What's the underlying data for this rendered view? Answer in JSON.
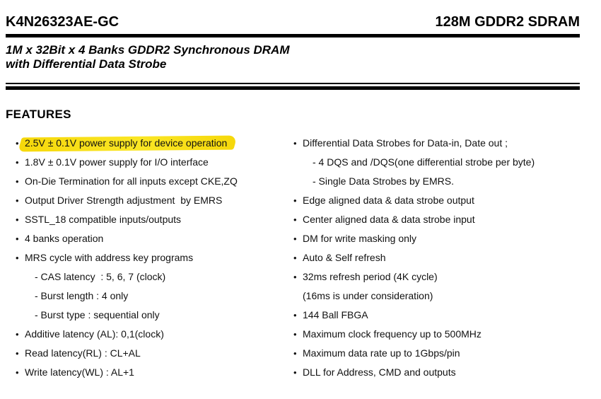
{
  "header": {
    "part_number": "K4N26323AE-GC",
    "product_family": "128M GDDR2 SDRAM",
    "subtitle_line1": "1M x 32Bit x 4 Banks GDDR2 Synchronous DRAM",
    "subtitle_line2": "with Differential Data Strobe"
  },
  "features": {
    "title": "FEATURES",
    "highlight_color": "#f6d80b",
    "left_column": [
      {
        "text": "2.5V ± 0.1V power supply for device operation",
        "bullet": true,
        "level": 0,
        "highlight": true
      },
      {
        "text": "1.8V ± 0.1V power supply for I/O interface",
        "bullet": true,
        "level": 0,
        "highlight": false
      },
      {
        "text": "On-Die Termination for all inputs except CKE,ZQ",
        "bullet": true,
        "level": 0,
        "highlight": false
      },
      {
        "text": "Output Driver Strength adjustment  by EMRS",
        "bullet": true,
        "level": 0,
        "highlight": false
      },
      {
        "text": "SSTL_18 compatible inputs/outputs",
        "bullet": true,
        "level": 0,
        "highlight": false
      },
      {
        "text": "4 banks operation",
        "bullet": true,
        "level": 0,
        "highlight": false
      },
      {
        "text": "MRS cycle with address key programs",
        "bullet": true,
        "level": 0,
        "highlight": false
      },
      {
        "text": "- CAS latency  : 5, 6, 7 (clock)",
        "bullet": false,
        "level": 1,
        "highlight": false
      },
      {
        "text": "- Burst length : 4 only",
        "bullet": false,
        "level": 1,
        "highlight": false
      },
      {
        "text": "- Burst type : sequential only",
        "bullet": false,
        "level": 1,
        "highlight": false
      },
      {
        "text": "Additive latency (AL): 0,1(clock)",
        "bullet": true,
        "level": 0,
        "highlight": false
      },
      {
        "text": "Read latency(RL) : CL+AL",
        "bullet": true,
        "level": 0,
        "highlight": false
      },
      {
        "text": "Write latency(WL) : AL+1",
        "bullet": true,
        "level": 0,
        "highlight": false
      }
    ],
    "right_column": [
      {
        "text": "Differential Data Strobes for Data-in, Date out ;",
        "bullet": true,
        "level": 0,
        "highlight": false
      },
      {
        "text": "- 4 DQS and /DQS(one differential strobe per byte)",
        "bullet": false,
        "level": 1,
        "highlight": false
      },
      {
        "text": "- Single Data Strobes by EMRS.",
        "bullet": false,
        "level": 1,
        "highlight": false
      },
      {
        "text": "Edge aligned data & data strobe output",
        "bullet": true,
        "level": 0,
        "highlight": false
      },
      {
        "text": "Center aligned data & data strobe input",
        "bullet": true,
        "level": 0,
        "highlight": false
      },
      {
        "text": "DM for write masking only",
        "bullet": true,
        "level": 0,
        "highlight": false
      },
      {
        "text": "Auto & Self refresh",
        "bullet": true,
        "level": 0,
        "highlight": false
      },
      {
        "text": "32ms refresh period (4K cycle)",
        "bullet": true,
        "level": 0,
        "highlight": false
      },
      {
        "text": "(16ms is under consideration)",
        "bullet": false,
        "level": 0,
        "highlight": false
      },
      {
        "text": "144 Ball FBGA",
        "bullet": true,
        "level": 0,
        "highlight": false
      },
      {
        "text": "Maximum clock frequency up to 500MHz",
        "bullet": true,
        "level": 0,
        "highlight": false
      },
      {
        "text": "Maximum data rate up to 1Gbps/pin",
        "bullet": true,
        "level": 0,
        "highlight": false
      },
      {
        "text": "DLL for Address, CMD and outputs",
        "bullet": true,
        "level": 0,
        "highlight": false
      }
    ]
  }
}
